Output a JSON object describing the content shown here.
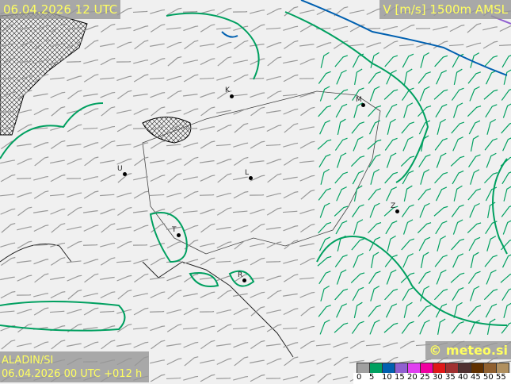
{
  "header": {
    "datetime": "06.04.2026 12 UTC",
    "parameter": "V [m/s] 1500m AMSL"
  },
  "footer": {
    "model": "ALADIN/SI",
    "run": "06.04.2026 00 UTC +012 h",
    "copyright": "© meteo.si"
  },
  "legend": {
    "labels": [
      "0",
      "5",
      "10",
      "15",
      "20",
      "25",
      "30",
      "35",
      "40",
      "45",
      "50",
      "55"
    ],
    "colors": [
      "#a0a0a0",
      "#00a060",
      "#0060b0",
      "#9060d0",
      "#e040f0",
      "#f000a0",
      "#e01818",
      "#a03030",
      "#503030",
      "#603000",
      "#906030",
      "#b09060"
    ]
  },
  "cities": [
    {
      "label": "K"
    },
    {
      "label": "M"
    },
    {
      "label": "U"
    },
    {
      "label": "L"
    },
    {
      "label": "Z"
    },
    {
      "label": "T"
    },
    {
      "label": "R"
    }
  ]
}
